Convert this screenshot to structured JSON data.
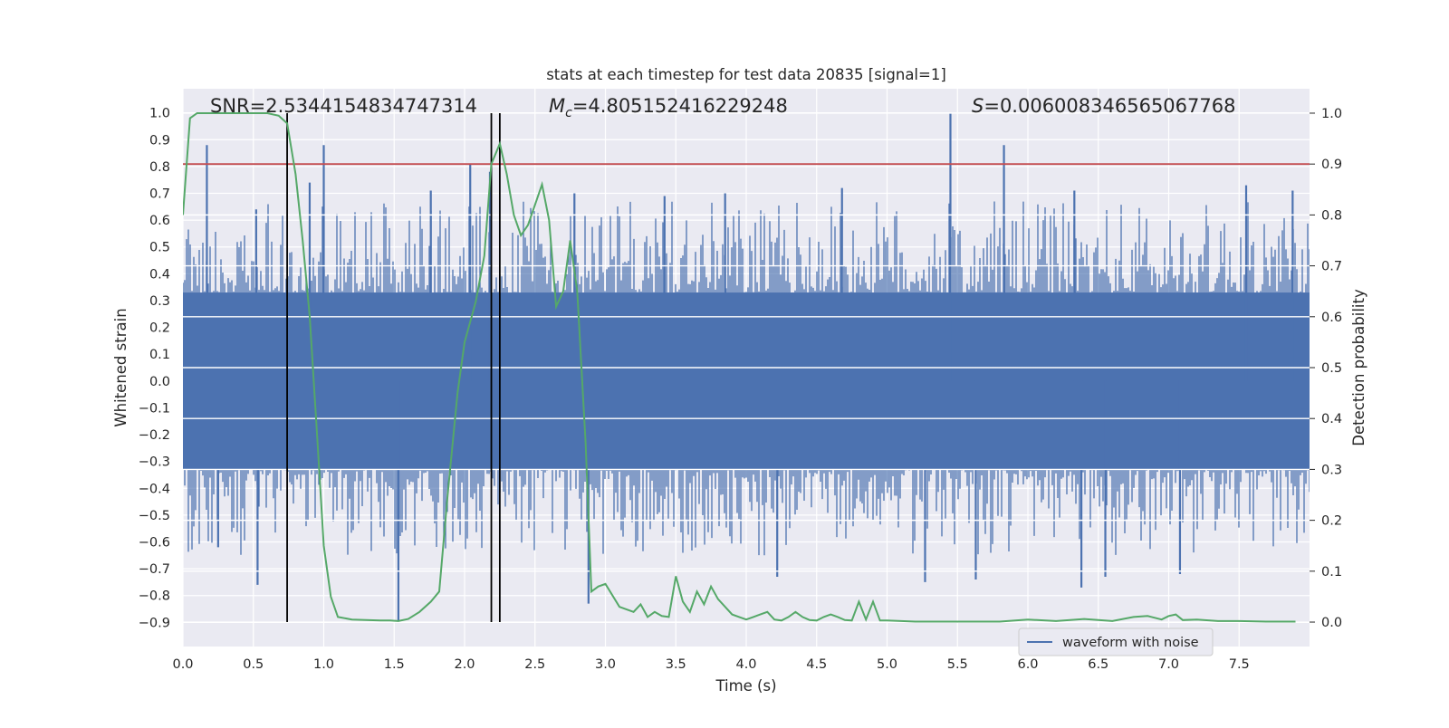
{
  "chart_data": {
    "type": "line",
    "title": "stats at each timestep for test data 20835 [signal=1]",
    "xlabel": "Time (s)",
    "ylabel_left": "Whitened strain",
    "ylabel_right": "Detection probability",
    "xlim": [
      0.0,
      8.0
    ],
    "ylim_left": [
      -0.99,
      1.09
    ],
    "ylim_right": [
      -0.048,
      1.048
    ],
    "x_ticks": [
      "0.0",
      "0.5",
      "1.0",
      "1.5",
      "2.0",
      "2.5",
      "3.0",
      "3.5",
      "4.0",
      "4.5",
      "5.0",
      "5.5",
      "6.0",
      "6.5",
      "7.0",
      "7.5"
    ],
    "y_ticks_left": [
      "1.0",
      "0.9",
      "0.8",
      "0.7",
      "0.6",
      "0.5",
      "0.4",
      "0.3",
      "0.2",
      "0.1",
      "0.0",
      "−0.1",
      "−0.2",
      "−0.3",
      "−0.4",
      "−0.5",
      "−0.6",
      "−0.7",
      "−0.8",
      "−0.9"
    ],
    "y_ticks_right": [
      "1.0",
      "0.9",
      "0.8",
      "0.7",
      "0.6",
      "0.5",
      "0.4",
      "0.3",
      "0.2",
      "0.1",
      "0.0"
    ],
    "stats": {
      "snr": "SNR=2.5344154834747314",
      "mc_symbol": "M",
      "mc_subscript": "c",
      "mc_value": "=4.805152416229248",
      "s_symbol": "S",
      "s_value": "=0.006008346565067768"
    },
    "legend": [
      {
        "label": "waveform with noise",
        "color": "#4c72b0"
      }
    ],
    "threshold_right": 0.9,
    "event_lines_x": [
      0.74,
      2.19,
      2.25
    ],
    "noise_series": {
      "name": "waveform with noise",
      "color": "#4c72b0",
      "envelope_abs": 0.33,
      "spikes": [
        {
          "x": 0.17,
          "y": 0.88
        },
        {
          "x": 0.25,
          "y": -0.62
        },
        {
          "x": 0.52,
          "y": 0.64
        },
        {
          "x": 0.53,
          "y": -0.76
        },
        {
          "x": 0.9,
          "y": 0.74
        },
        {
          "x": 1.0,
          "y": 0.88
        },
        {
          "x": 1.53,
          "y": -0.9
        },
        {
          "x": 1.76,
          "y": 0.71
        },
        {
          "x": 2.04,
          "y": 0.81
        },
        {
          "x": 2.18,
          "y": 0.78
        },
        {
          "x": 2.78,
          "y": 0.7
        },
        {
          "x": 2.88,
          "y": -0.83
        },
        {
          "x": 3.42,
          "y": 0.69
        },
        {
          "x": 3.85,
          "y": 0.7
        },
        {
          "x": 4.22,
          "y": -0.73
        },
        {
          "x": 4.68,
          "y": 0.72
        },
        {
          "x": 5.27,
          "y": -0.75
        },
        {
          "x": 5.45,
          "y": 1.0
        },
        {
          "x": 5.63,
          "y": -0.74
        },
        {
          "x": 5.83,
          "y": 0.88
        },
        {
          "x": 6.33,
          "y": 0.71
        },
        {
          "x": 6.38,
          "y": -0.77
        },
        {
          "x": 6.55,
          "y": -0.73
        },
        {
          "x": 7.08,
          "y": -0.72
        },
        {
          "x": 7.55,
          "y": 0.73
        },
        {
          "x": 7.88,
          "y": 0.71
        }
      ]
    },
    "probability_series": {
      "name": "Detection probability",
      "color": "#55a868",
      "x": [
        0.0,
        0.05,
        0.1,
        0.15,
        0.2,
        0.3,
        0.4,
        0.5,
        0.6,
        0.68,
        0.74,
        0.8,
        0.85,
        0.9,
        0.95,
        1.0,
        1.05,
        1.1,
        1.2,
        1.3,
        1.4,
        1.47,
        1.53,
        1.6,
        1.68,
        1.76,
        1.82,
        1.88,
        1.95,
        2.0,
        2.08,
        2.14,
        2.19,
        2.25,
        2.3,
        2.35,
        2.4,
        2.45,
        2.5,
        2.55,
        2.6,
        2.65,
        2.7,
        2.75,
        2.8,
        2.86,
        2.9,
        2.95,
        3.0,
        3.1,
        3.2,
        3.25,
        3.3,
        3.35,
        3.4,
        3.45,
        3.5,
        3.55,
        3.6,
        3.65,
        3.7,
        3.75,
        3.8,
        3.85,
        3.9,
        3.95,
        4.0,
        4.05,
        4.1,
        4.15,
        4.2,
        4.25,
        4.3,
        4.35,
        4.4,
        4.45,
        4.5,
        4.55,
        4.6,
        4.65,
        4.7,
        4.75,
        4.8,
        4.85,
        4.9,
        4.95,
        5.0,
        5.2,
        5.4,
        5.6,
        5.8,
        6.0,
        6.2,
        6.4,
        6.6,
        6.75,
        6.85,
        6.95,
        7.0,
        7.05,
        7.1,
        7.2,
        7.35,
        7.5,
        7.7,
        7.9
      ],
      "y": [
        0.8,
        0.99,
        1.0,
        1.0,
        1.0,
        1.0,
        1.0,
        1.0,
        1.0,
        0.995,
        0.98,
        0.88,
        0.75,
        0.6,
        0.38,
        0.15,
        0.05,
        0.01,
        0.005,
        0.004,
        0.003,
        0.003,
        0.002,
        0.006,
        0.02,
        0.04,
        0.06,
        0.25,
        0.45,
        0.55,
        0.63,
        0.72,
        0.9,
        0.94,
        0.88,
        0.8,
        0.76,
        0.78,
        0.82,
        0.86,
        0.79,
        0.62,
        0.65,
        0.75,
        0.65,
        0.35,
        0.06,
        0.07,
        0.075,
        0.03,
        0.02,
        0.035,
        0.01,
        0.02,
        0.012,
        0.01,
        0.09,
        0.04,
        0.02,
        0.06,
        0.035,
        0.07,
        0.045,
        0.03,
        0.015,
        0.01,
        0.005,
        0.01,
        0.015,
        0.02,
        0.005,
        0.003,
        0.01,
        0.02,
        0.01,
        0.004,
        0.003,
        0.01,
        0.015,
        0.01,
        0.004,
        0.003,
        0.04,
        0.005,
        0.04,
        0.003,
        0.003,
        0.001,
        0.001,
        0.001,
        0.001,
        0.005,
        0.002,
        0.006,
        0.002,
        0.01,
        0.012,
        0.005,
        0.012,
        0.015,
        0.004,
        0.005,
        0.002,
        0.002,
        0.001,
        0.001
      ]
    }
  }
}
